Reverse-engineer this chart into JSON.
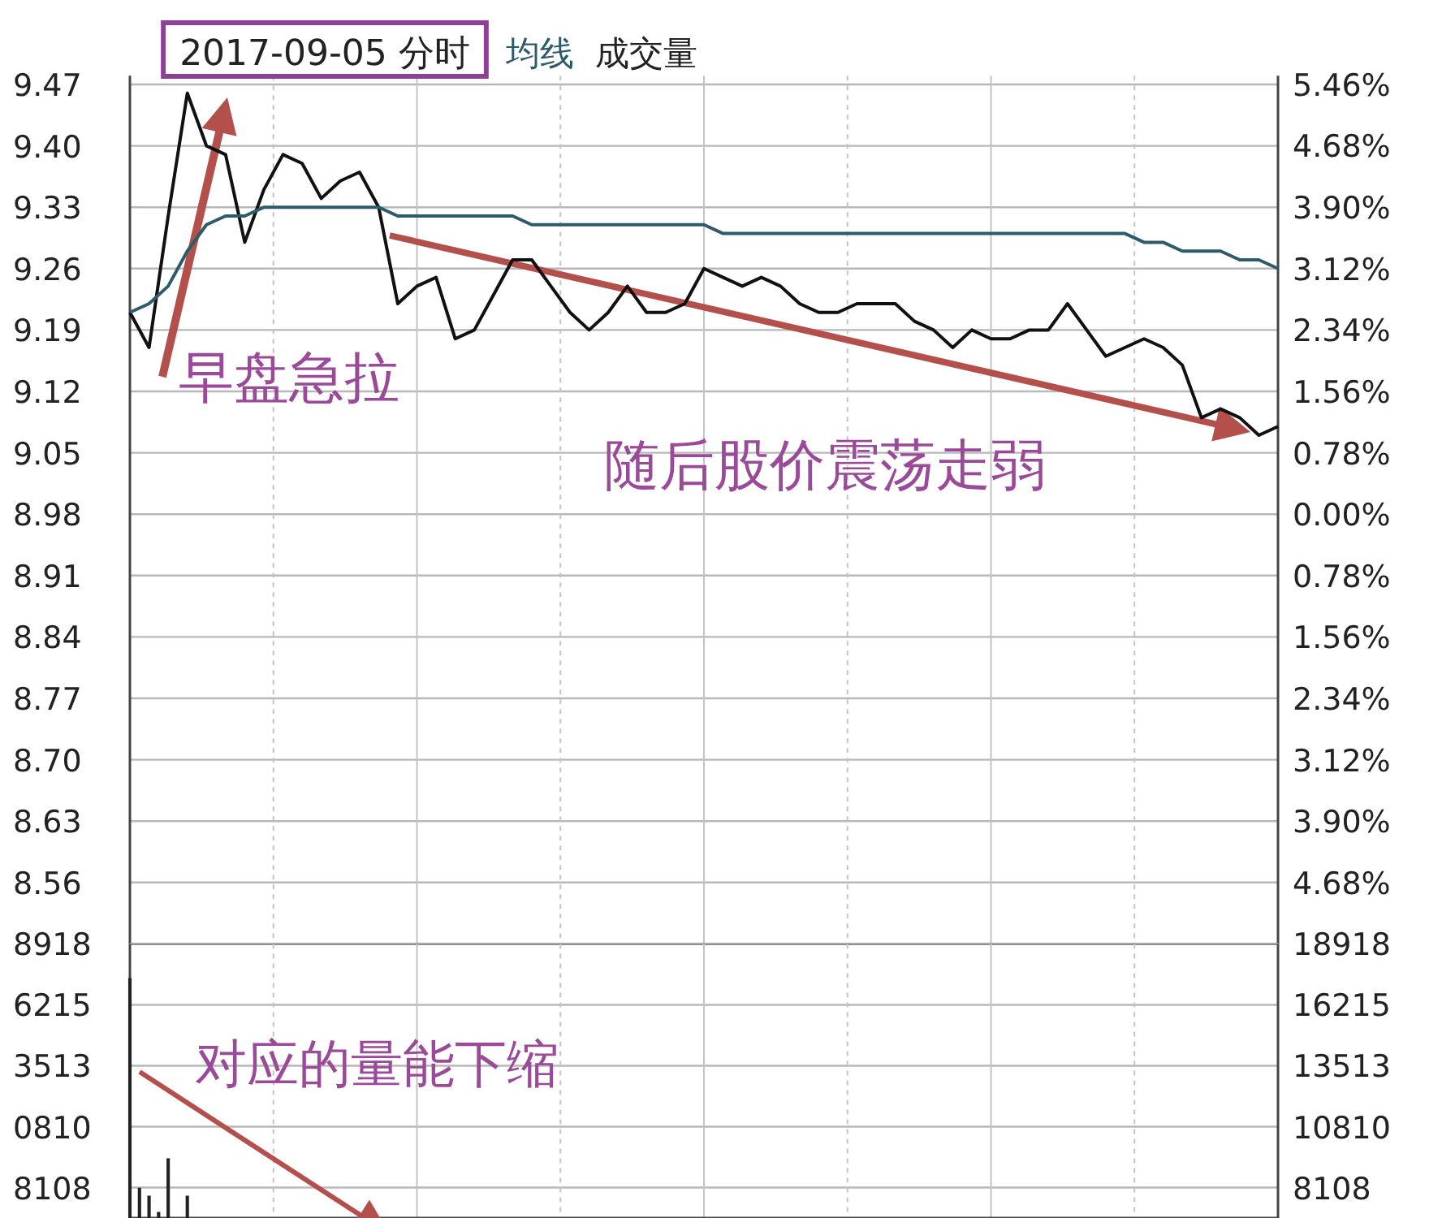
{
  "chart_data": [
    {
      "type": "line",
      "title": "2017-09-05 分时",
      "categories": [
        null,
        null,
        null,
        null,
        null,
        null,
        null,
        null,
        null,
        null,
        null,
        null,
        null,
        null,
        null,
        null,
        null,
        null,
        null,
        null,
        null,
        null,
        null,
        null,
        null,
        null,
        null,
        null,
        null,
        null,
        null,
        null,
        null,
        null,
        null,
        null,
        null,
        null,
        null,
        null,
        null,
        null,
        null,
        null,
        null,
        null,
        null,
        null,
        null,
        null,
        null,
        null,
        null,
        null,
        null,
        null,
        null,
        null,
        null,
        null,
        null
      ],
      "series": [
        {
          "color": "#111111",
          "values": [
            9.21,
            9.17,
            9.32,
            9.46,
            9.4,
            9.39,
            9.29,
            9.35,
            9.39,
            9.38,
            9.34,
            9.36,
            9.37,
            9.33,
            9.22,
            9.24,
            9.25,
            9.18,
            9.19,
            9.23,
            9.27,
            9.27,
            9.24,
            9.21,
            9.19,
            9.21,
            9.24,
            9.21,
            9.21,
            9.22,
            9.26,
            9.25,
            9.24,
            9.25,
            9.24,
            9.22,
            9.21,
            9.21,
            9.22,
            9.22,
            9.22,
            9.2,
            9.19,
            9.17,
            9.19,
            9.18,
            9.18,
            9.19,
            9.19,
            9.22,
            9.19,
            9.16,
            9.17,
            9.18,
            9.17,
            9.15,
            9.09,
            9.1,
            9.09,
            9.07,
            9.08
          ]
        },
        {
          "name": "均线",
          "color": "#2e5b6b",
          "values": [
            9.21,
            9.22,
            9.24,
            9.28,
            9.31,
            9.32,
            9.32,
            9.33,
            9.33,
            9.33,
            9.33,
            9.33,
            9.33,
            9.33,
            9.32,
            9.32,
            9.32,
            9.32,
            9.32,
            9.32,
            9.32,
            9.31,
            9.31,
            9.31,
            9.31,
            9.31,
            9.31,
            9.31,
            9.31,
            9.31,
            9.31,
            9.3,
            9.3,
            9.3,
            9.3,
            9.3,
            9.3,
            9.3,
            9.3,
            9.3,
            9.3,
            9.3,
            9.3,
            9.3,
            9.3,
            9.3,
            9.3,
            9.3,
            9.3,
            9.3,
            9.3,
            9.3,
            9.3,
            9.29,
            9.29,
            9.28,
            9.28,
            9.28,
            9.27,
            9.27,
            9.26
          ]
        }
      ],
      "ylim": [
        8.49,
        9.48
      ],
      "yticks": [
        9.47,
        {
          "value": 9.4,
          "label": "9.40"
        },
        9.33,
        9.26,
        9.19,
        9.12,
        9.05,
        8.98,
        8.91,
        8.84,
        8.77,
        {
          "value": 8.7,
          "label": "8.70"
        },
        8.63,
        8.56
      ],
      "y2lim": [
        -5.46,
        5.57
      ],
      "y2ticks": [
        {
          "value": 5.46,
          "label": "5.46%"
        },
        {
          "value": 4.68,
          "label": "4.68%"
        },
        {
          "value": 3.9,
          "label": "3.90%"
        },
        {
          "value": 3.12,
          "label": "3.12%"
        },
        {
          "value": 2.34,
          "label": "2.34%"
        },
        {
          "value": 1.56,
          "label": "1.56%"
        },
        {
          "value": 0.78,
          "label": "0.78%"
        },
        {
          "value": 0,
          "label": "0.00%"
        },
        {
          "value": -0.78,
          "label": "0.78%"
        },
        {
          "value": -1.56,
          "label": "1.56%"
        },
        {
          "value": -2.34,
          "label": "2.34%"
        },
        {
          "value": -3.12,
          "label": "3.12%"
        },
        {
          "value": -3.9,
          "label": "3.90%"
        },
        {
          "value": -4.68,
          "label": "4.68%"
        }
      ],
      "annotations": [
        "成交量",
        "早盘急拉",
        "随后股价震荡走弱"
      ],
      "grid": true,
      "legend": "top left"
    },
    {
      "type": "bar",
      "categories": [
        null,
        null,
        null,
        null,
        null,
        null,
        null,
        null,
        null,
        null,
        null,
        null,
        null,
        null,
        null,
        null,
        null,
        null,
        null,
        null,
        null,
        null,
        null,
        null,
        null,
        null,
        null,
        null,
        null,
        null,
        null,
        null,
        null,
        null,
        null,
        null,
        null,
        null,
        null,
        null,
        null,
        null,
        null,
        null,
        null,
        null,
        null,
        null,
        null,
        null,
        null,
        null,
        null,
        null,
        null,
        null,
        null,
        null,
        null,
        null,
        null,
        null,
        null,
        null,
        null,
        null,
        null,
        null,
        null,
        null,
        null,
        null,
        null,
        null,
        null,
        null,
        null,
        null,
        null,
        null,
        null,
        null,
        null,
        null,
        null,
        null,
        null,
        null,
        null,
        null,
        null,
        null,
        null,
        null,
        null,
        null,
        null,
        null,
        null,
        null,
        null,
        null,
        null,
        null,
        null,
        null,
        null,
        null,
        null,
        null,
        null,
        null,
        null,
        null,
        null,
        null,
        null,
        null,
        null,
        null,
        null
      ],
      "series": [
        {
          "axis": "y2",
          "color": "#222222",
          "values": [
            17400,
            8100,
            7750,
            7030,
            9410,
            null,
            7750,
            null,
            null,
            null,
            null,
            null,
            null,
            null,
            null,
            null,
            null,
            null,
            null,
            null,
            null,
            null,
            null,
            null,
            null,
            null,
            null,
            null,
            null,
            null,
            null,
            null,
            null,
            null,
            null,
            null,
            null,
            null,
            null,
            null,
            null,
            null,
            null,
            null,
            null,
            null,
            null,
            null,
            null,
            null,
            null,
            null,
            null,
            null,
            null,
            null,
            null,
            null,
            null,
            null,
            null,
            null,
            null,
            null,
            null,
            null,
            null,
            null,
            null,
            null,
            null,
            null,
            null,
            null,
            null,
            null,
            null,
            null,
            null,
            null,
            null,
            null,
            null,
            null,
            null,
            null,
            null,
            null,
            null,
            null,
            null,
            null,
            null,
            null,
            null,
            null,
            null,
            null,
            null,
            null,
            null,
            null,
            null,
            null,
            null,
            null,
            null,
            null,
            null,
            null,
            null,
            null,
            null,
            null,
            null,
            null,
            null,
            null,
            null,
            null,
            null
          ]
        }
      ],
      "y2lim": [
        6760,
        18918
      ],
      "y2ticks": [
        18918,
        16215,
        13513,
        10810,
        8108
      ],
      "annotations": [
        "对应的量能下缩",
        "8918",
        "6215",
        "3513",
        "0810",
        "8108"
      ],
      "grid": true
    }
  ]
}
